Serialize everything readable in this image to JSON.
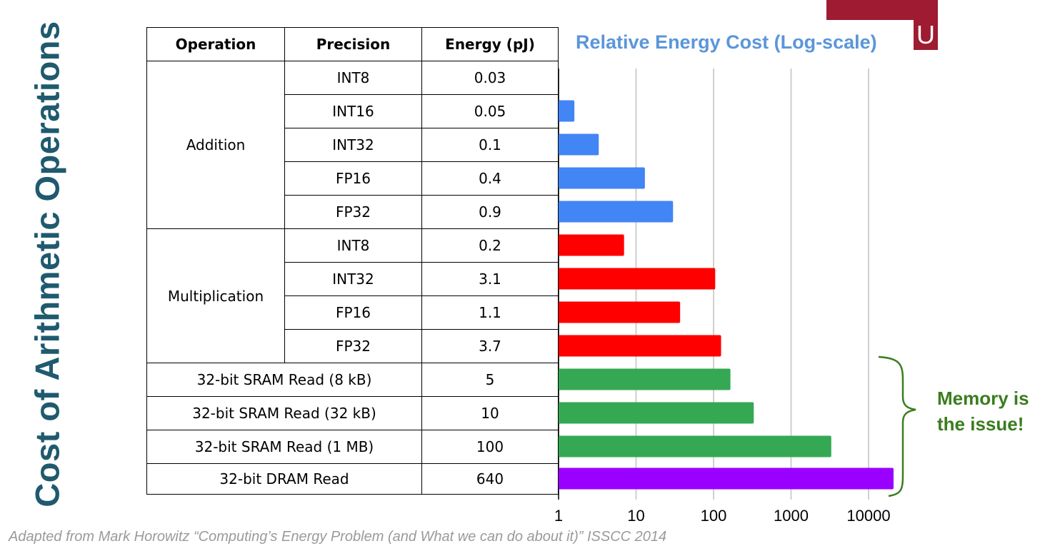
{
  "slide": {
    "side_title": "Cost of Arithmetic Operations",
    "caption": "Adapted from Mark Horowitz “Computing’s Energy Problem (and What we can do about it)” ISSCC 2014",
    "logo_letter": "U",
    "logo_color": "#9e1b32"
  },
  "table": {
    "headers": [
      "Operation",
      "Precision",
      "Energy (pJ)"
    ],
    "groups": {
      "addition": "Addition",
      "multiplication": "Multiplication"
    },
    "rows": [
      {
        "operation": "Addition",
        "precision": "INT8",
        "energy": "0.03"
      },
      {
        "operation": "Addition",
        "precision": "INT16",
        "energy": "0.05"
      },
      {
        "operation": "Addition",
        "precision": "INT32",
        "energy": "0.1"
      },
      {
        "operation": "Addition",
        "precision": "FP16",
        "energy": "0.4"
      },
      {
        "operation": "Addition",
        "precision": "FP32",
        "energy": "0.9"
      },
      {
        "operation": "Multiplication",
        "precision": "INT8",
        "energy": "0.2"
      },
      {
        "operation": "Multiplication",
        "precision": "INT32",
        "energy": "3.1"
      },
      {
        "operation": "Multiplication",
        "precision": "FP16",
        "energy": "1.1"
      },
      {
        "operation": "Multiplication",
        "precision": "FP32",
        "energy": "3.7"
      },
      {
        "operation": "32-bit SRAM Read (8 kB)",
        "precision": "",
        "energy": "5"
      },
      {
        "operation": "32-bit SRAM Read (32 kB)",
        "precision": "",
        "energy": "10"
      },
      {
        "operation": "32-bit SRAM Read (1 MB)",
        "precision": "",
        "energy": "100"
      },
      {
        "operation": "32-bit DRAM Read",
        "precision": "",
        "energy": "640"
      }
    ]
  },
  "chart_data": {
    "type": "bar",
    "orientation": "horizontal",
    "title": "Relative Energy Cost (Log-scale)",
    "x_scale": "log",
    "xlim": [
      1,
      30000
    ],
    "x_ticks": [
      "1",
      "10",
      "100",
      "1000",
      "10000"
    ],
    "grid": true,
    "categories": [
      "Addition INT8",
      "Addition INT16",
      "Addition INT32",
      "Addition FP16",
      "Addition FP32",
      "Multiplication INT8",
      "Multiplication INT32",
      "Multiplication FP16",
      "Multiplication FP32",
      "32-bit SRAM Read (8 kB)",
      "32-bit SRAM Read (32 kB)",
      "32-bit SRAM Read (1 MB)",
      "32-bit DRAM Read"
    ],
    "values": [
      1,
      1.6,
      3.3,
      13,
      30,
      7,
      105,
      37,
      125,
      165,
      330,
      3300,
      21000
    ],
    "colors": [
      "#4285f4",
      "#4285f4",
      "#4285f4",
      "#4285f4",
      "#4285f4",
      "#ff0000",
      "#ff0000",
      "#ff0000",
      "#ff0000",
      "#34a853",
      "#34a853",
      "#34a853",
      "#9900ff"
    ],
    "annotation": {
      "lines": [
        "Memory is",
        "the issue!"
      ],
      "color": "#3a7d1f"
    }
  }
}
